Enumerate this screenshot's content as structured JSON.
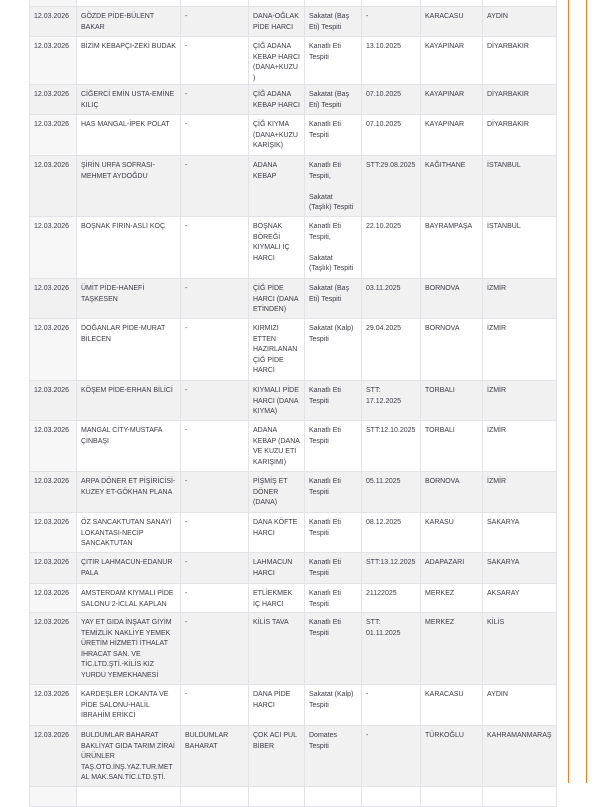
{
  "accent_color": "#ff7a1a",
  "rows": [
    {
      "date": "",
      "name": "",
      "brand": "",
      "product": "",
      "violation": "",
      "detect_date": "",
      "district": "",
      "city": ""
    },
    {
      "date": "12.03.2026",
      "name": "GÖZDE PİDE-BÜLENT BAKAR",
      "brand": "-",
      "product": "DANA-OĞLAK PİDE HARCI",
      "violation": "Sakatat (Baş Eti) Tespiti",
      "detect_date": "-",
      "district": "KARACASU",
      "city": "AYDIN"
    },
    {
      "date": "12.03.2026",
      "name": "BİZİM KEBAPÇI-ZEKİ BUDAK",
      "brand": "-",
      "product": "ÇİĞ ADANA KEBAP HARCI (DANA+KUZU)",
      "violation": "Kanatlı Eti Tespiti",
      "detect_date": "13.10.2025",
      "district": "KAYAPINAR",
      "city": "DİYARBAKIR"
    },
    {
      "date": "12.03.2026",
      "name": "CİĞERCİ EMİN USTA-EMİNE KILIÇ",
      "brand": "-",
      "product": "ÇİĞ ADANA KEBAP HARCI",
      "violation": "Sakatat (Baş Eti) Tespiti",
      "detect_date": "07.10.2025",
      "district": "KAYAPINAR",
      "city": "DİYARBAKIR"
    },
    {
      "date": "12.03.2026",
      "name": "HAS MANGAL-İPEK POLAT",
      "brand": "-",
      "product": "ÇİĞ KIYMA (DANA+KUZU KARIŞIK)",
      "violation": "Kanatlı Eti Tespiti",
      "detect_date": "07.10.2025",
      "district": "KAYAPINAR",
      "city": "DİYARBAKIR"
    },
    {
      "date": "12.03.2026",
      "name": "ŞİRİN URFA SOFRASI-MEHMET AYDOĞDU",
      "brand": "-",
      "product": "ADANA KEBAP",
      "violation": "Kanatlı Eti Tespiti,\n\nSakatat (Taşlık) Tespiti",
      "detect_date": "STT:29.08.2025",
      "district": "KAĞITHANE",
      "city": "İSTANBUL"
    },
    {
      "date": "12.03.2026",
      "name": "BOŞNAK FIRIN-ASLI KOÇ",
      "brand": "-",
      "product": "BOŞNAK BÖREĞİ KIYMALI İÇ HARCI",
      "violation": "Kanatlı Eti Tespiti,\n\nSakatat (Taşlık) Tespiti",
      "detect_date": "22.10.2025",
      "district": "BAYRAMPAŞA",
      "city": "İSTANBUL"
    },
    {
      "date": "12.03.2026",
      "name": "ÜMİT PİDE-HANEFİ TAŞKESEN",
      "brand": "-",
      "product": "ÇİĞ PİDE HARCI (DANA ETİNDEN)",
      "violation": "Sakatat (Baş Eti) Tespiti",
      "detect_date": "03.11.2025",
      "district": "BORNOVA",
      "city": "İZMİR"
    },
    {
      "date": "12.03.2026",
      "name": "DOĞANLAR PİDE-MURAT BİLECEN",
      "brand": "-",
      "product": "KIRMIZI ETTEN HAZIRLANAN ÇİĞ PİDE HARCI",
      "violation": "Sakatat (Kalp) Tespiti",
      "detect_date": "29.04.2025",
      "district": "BORNOVA",
      "city": "İZMİR"
    },
    {
      "date": "12.03.2026",
      "name": "KÖŞEM PİDE-ERHAN BİLİCİ",
      "brand": "-",
      "product": "KIYMALI PİDE HARCI (DANA KIYMA)",
      "violation": "Kanatlı Eti Tespiti",
      "detect_date": "STT: 17.12.2025",
      "district": "TORBALI",
      "city": "İZMİR"
    },
    {
      "date": "12.03.2026",
      "name": "MANGAL CİTY-MUSTAFA ÇİNBAŞI",
      "brand": "-",
      "product": "ADANA KEBAP (DANA VE KUZU ETİ KARIŞIMI)",
      "violation": "Kanatlı Eti Tespiti",
      "detect_date": "STT:12.10.2025",
      "district": "TORBALI",
      "city": "İZMİR"
    },
    {
      "date": "12.03.2026",
      "name": "ARPA DÖNER ET PİŞİRİCİSİ-KUZEY ET-GÖKHAN PLANA",
      "brand": "-",
      "product": "PİŞMİŞ ET DÖNER (DANA)",
      "violation": "Kanatlı Eti Tespiti",
      "detect_date": "05.11.2025",
      "district": "BORNOVA",
      "city": "İZMİR"
    },
    {
      "date": "12.03.2026",
      "name": "ÖZ SANCAKTUTAN SANAYİ LOKANTASI-NECİP SANCAKTUTAN",
      "brand": "-",
      "product": "DANA KÖFTE HARCI",
      "violation": "Kanatlı Eti Tespiti",
      "detect_date": "08.12.2025",
      "district": "KARASU",
      "city": "SAKARYA"
    },
    {
      "date": "12.03.2026",
      "name": "ÇITIR LAHMACUN-EDANUR PALA",
      "brand": "-",
      "product": "LAHMACUN HARCI",
      "violation": "Kanatlı Eti Tespiti",
      "detect_date": "STT:13.12.2025",
      "district": "ADAPAZARI",
      "city": "SAKARYA"
    },
    {
      "date": "12.03.2026",
      "name": "AMSTERDAM KIYMALI PİDE SALONU 2-İCLAL KAPLAN",
      "brand": "-",
      "product": "ETLİEKMEK İÇ HARCI",
      "violation": "Kanatlı Eti Tespiti",
      "detect_date": "21122025",
      "district": "MERKEZ",
      "city": "AKSARAY"
    },
    {
      "date": "12.03.2026",
      "name": "YAY ET GIDA İNŞAAT GİYİM TEMİZLİK NAKLİYE YEMEK ÜRETİM HİZMETİ İTHALAT İHRACAT SAN. VE TİC.LTD.ŞTİ.-KİLİS KIZ YURDU YEMEKHANESİ",
      "brand": "-",
      "product": "KİLİS TAVA",
      "violation": "Kanatlı Eti Tespiti",
      "detect_date": "STT: 01.11.2025",
      "district": "MERKEZ",
      "city": "KİLİS"
    },
    {
      "date": "12.03.2026",
      "name": "KARDEŞLER LOKANTA VE PİDE SALONU-HALİL İBRAHİM ERİKCİ",
      "brand": "-",
      "product": "DANA PİDE HARCI",
      "violation": "Sakatat (Kalp) Tespiti",
      "detect_date": "-",
      "district": "KARACASU",
      "city": "AYDIN"
    },
    {
      "date": "12.03.2026",
      "name": "BULDUMLAR BAHARAT BAKLİYAT GIDA TARIM ZİRAİ ÜRÜNLER TAŞ.OTO.İNŞ.YAZ.TUR.METAL MAK.SAN.TİC.LTD.ŞTİ.",
      "brand": "BULDUMLAR BAHARAT",
      "product": "ÇOK ACI PUL BİBER",
      "violation": "Domates Tespiti",
      "detect_date": "-",
      "district": "TÜRKOĞLU",
      "city": "KAHRAMANMARAŞ"
    },
    {
      "date": "",
      "name": "",
      "brand": "",
      "product": "",
      "violation": "",
      "detect_date": "",
      "district": "",
      "city": ""
    }
  ]
}
